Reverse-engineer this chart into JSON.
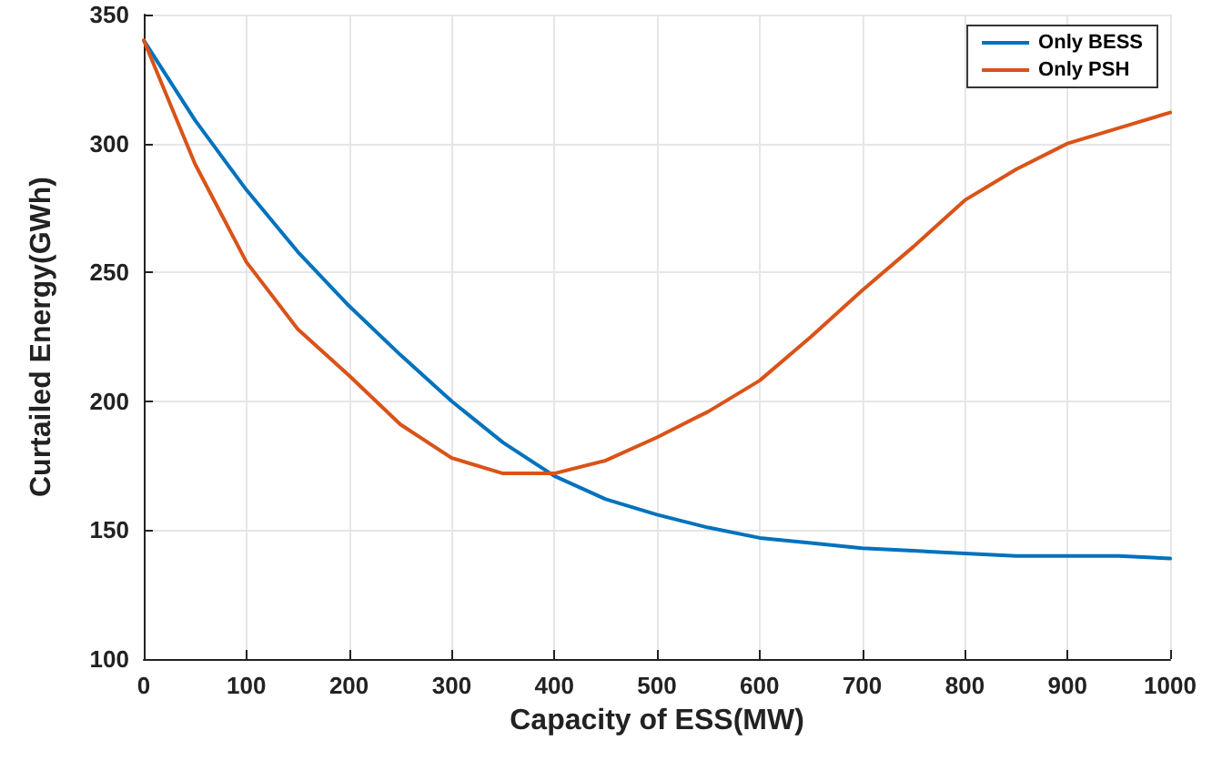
{
  "chart_data": {
    "type": "line",
    "xlabel": "Capacity of ESS(MW)",
    "ylabel": "Curtailed Energy(GWh)",
    "x": [
      0,
      50,
      100,
      150,
      200,
      250,
      300,
      350,
      400,
      450,
      500,
      550,
      600,
      650,
      700,
      750,
      800,
      850,
      900,
      950,
      1000
    ],
    "series": [
      {
        "name": "Only BESS",
        "color": "#0072bd",
        "values": [
          340,
          309,
          282,
          258,
          237,
          218,
          200,
          184,
          171,
          162,
          156,
          151,
          147,
          145,
          143,
          142,
          141,
          140,
          140,
          140,
          139
        ]
      },
      {
        "name": "Only PSH",
        "color": "#d95319",
        "values": [
          340,
          292,
          254,
          228,
          210,
          191,
          178,
          172,
          172,
          177,
          186,
          196,
          208,
          225,
          243,
          260,
          278,
          290,
          300,
          306,
          312
        ]
      }
    ],
    "xlim": [
      0,
      1000
    ],
    "xticks": [
      0,
      100,
      200,
      300,
      400,
      500,
      600,
      700,
      800,
      900,
      1000
    ],
    "ylim": [
      100,
      350
    ],
    "yticks": [
      100,
      150,
      200,
      250,
      300,
      350
    ],
    "grid": true,
    "legend": "top right",
    "marker": "none",
    "line_style": "solid"
  }
}
